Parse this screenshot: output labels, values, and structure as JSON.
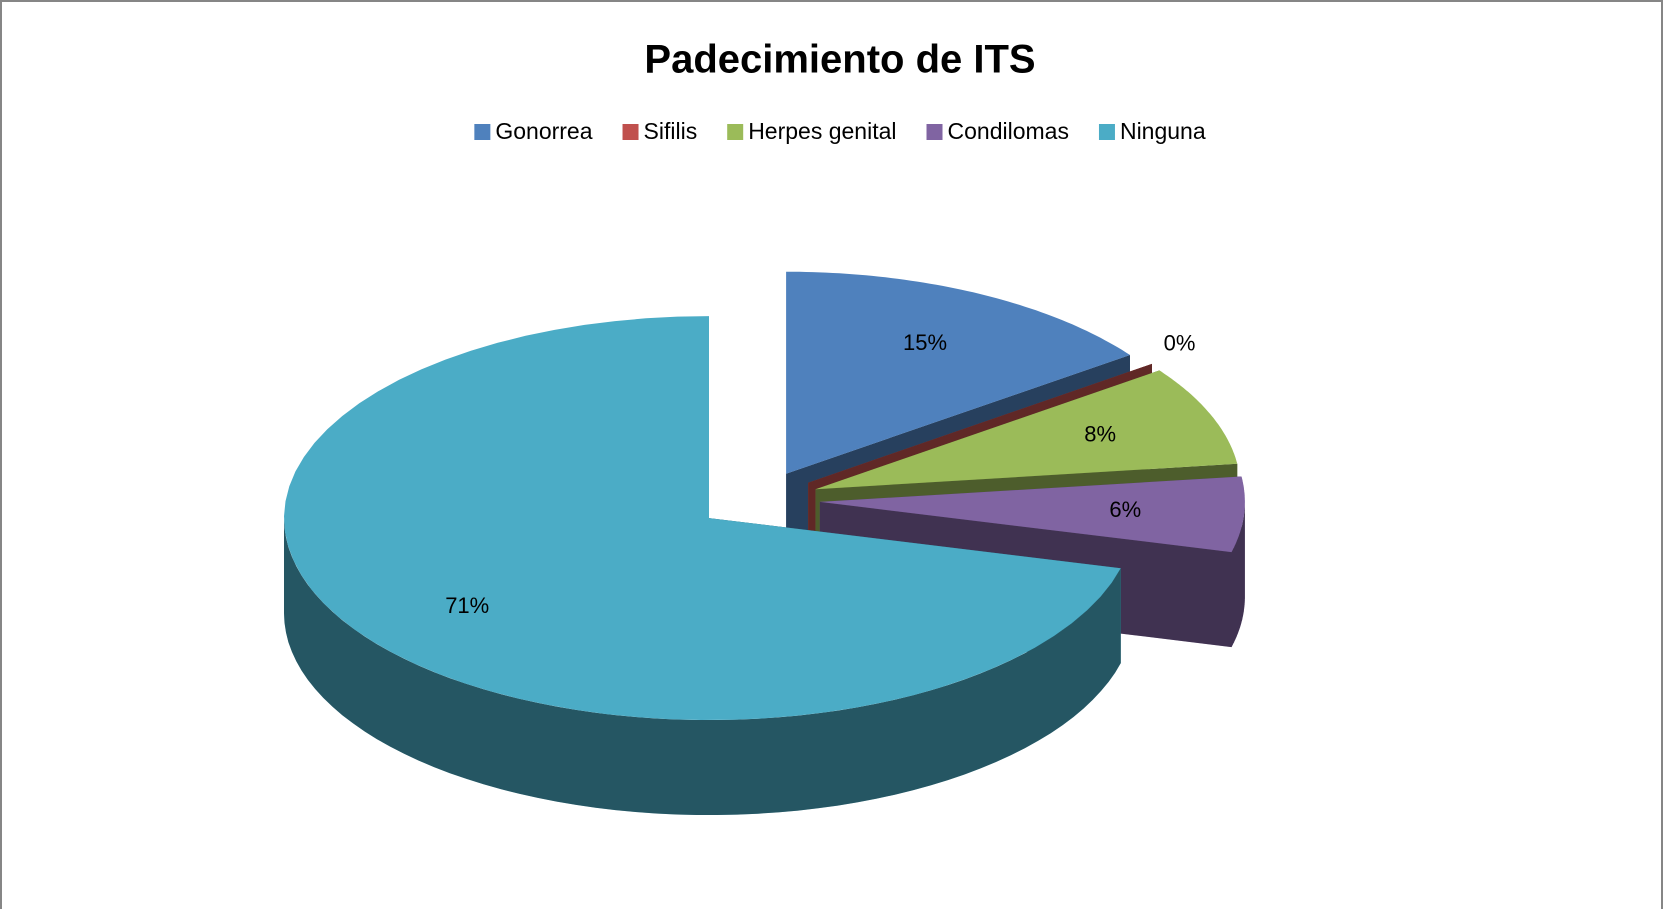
{
  "chart_data": {
    "type": "pie",
    "title": "Padecimiento de ITS",
    "categories": [
      "Gonorrea",
      "Sifilis",
      "Herpes genital",
      "Condilomas",
      "Ninguna"
    ],
    "values": [
      15,
      0,
      8,
      6,
      71
    ],
    "value_labels": [
      "15%",
      "0%",
      "8%",
      "6%",
      "71%"
    ],
    "colors": [
      "#4f81bd",
      "#c0504d",
      "#9bbb59",
      "#8064a2",
      "#4bacc6"
    ],
    "legend": "top"
  }
}
